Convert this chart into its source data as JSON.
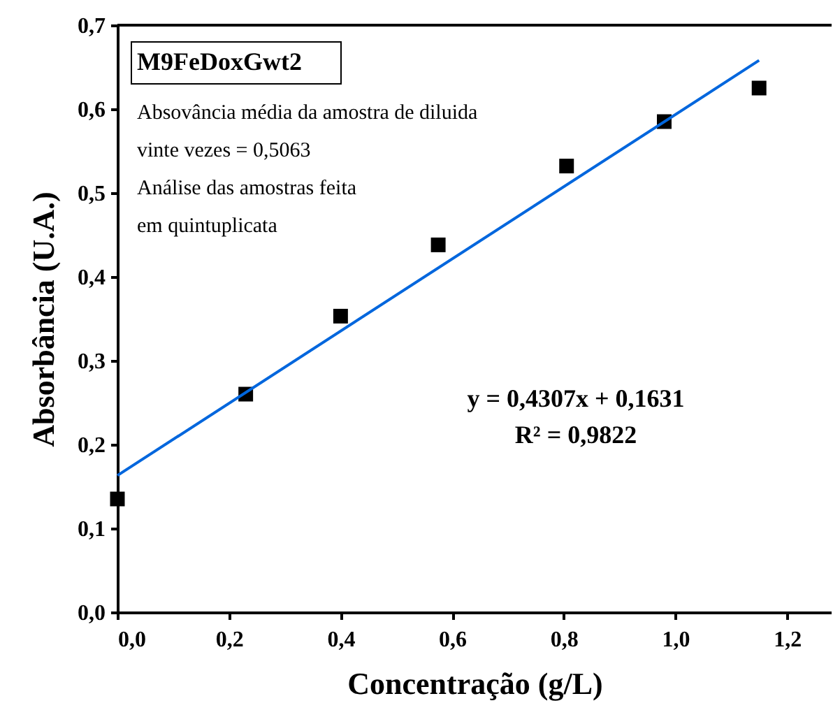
{
  "chart_data": {
    "type": "scatter",
    "xlabel": "Concentração (g/L)",
    "ylabel": "Absorbância (U.A.)",
    "x": [
      0,
      0.23,
      0.4,
      0.575,
      0.805,
      0.98,
      1.15
    ],
    "series": [
      {
        "color": "#000000",
        "marker": "square",
        "values": [
          0.135,
          0.26,
          0.353,
          0.438,
          0.532,
          0.585,
          0.625
        ]
      },
      {
        "type": "line",
        "color": "#0066dd",
        "line_style": "solid",
        "x": [
          0,
          1.15
        ],
        "values": [
          0.163,
          0.658
        ]
      }
    ],
    "xlim": [
      0,
      1.28
    ],
    "xticks": [
      {
        "value": 0,
        "label": "0,0"
      },
      {
        "value": 0.2,
        "label": "0,2"
      },
      {
        "value": 0.4,
        "label": "0,4"
      },
      {
        "value": 0.6,
        "label": "0,6"
      },
      {
        "value": 0.8,
        "label": "0,8"
      },
      {
        "value": 1.0,
        "label": "1,0"
      },
      {
        "value": 1.2,
        "label": "1,2"
      }
    ],
    "ylim": [
      0,
      0.7
    ],
    "yticks": [
      {
        "value": 0,
        "label": "0,0"
      },
      {
        "value": 0.1,
        "label": "0,1"
      },
      {
        "value": 0.2,
        "label": "0,2"
      },
      {
        "value": 0.3,
        "label": "0,3"
      },
      {
        "value": 0.4,
        "label": "0,4"
      },
      {
        "value": 0.5,
        "label": "0,5"
      },
      {
        "value": 0.6,
        "label": "0,6"
      },
      {
        "value": 0.7,
        "label": "0,7"
      }
    ],
    "annotations": [
      "M9FeDoxGwt2",
      "Absovância média da amostra de diluida",
      "vinte  vezes = 0,5063",
      "Análise das amostras feita",
      "em quintuplicata",
      "y = 0,4307x + 0,1631",
      "R² = 0,9822"
    ],
    "grid": false
  }
}
